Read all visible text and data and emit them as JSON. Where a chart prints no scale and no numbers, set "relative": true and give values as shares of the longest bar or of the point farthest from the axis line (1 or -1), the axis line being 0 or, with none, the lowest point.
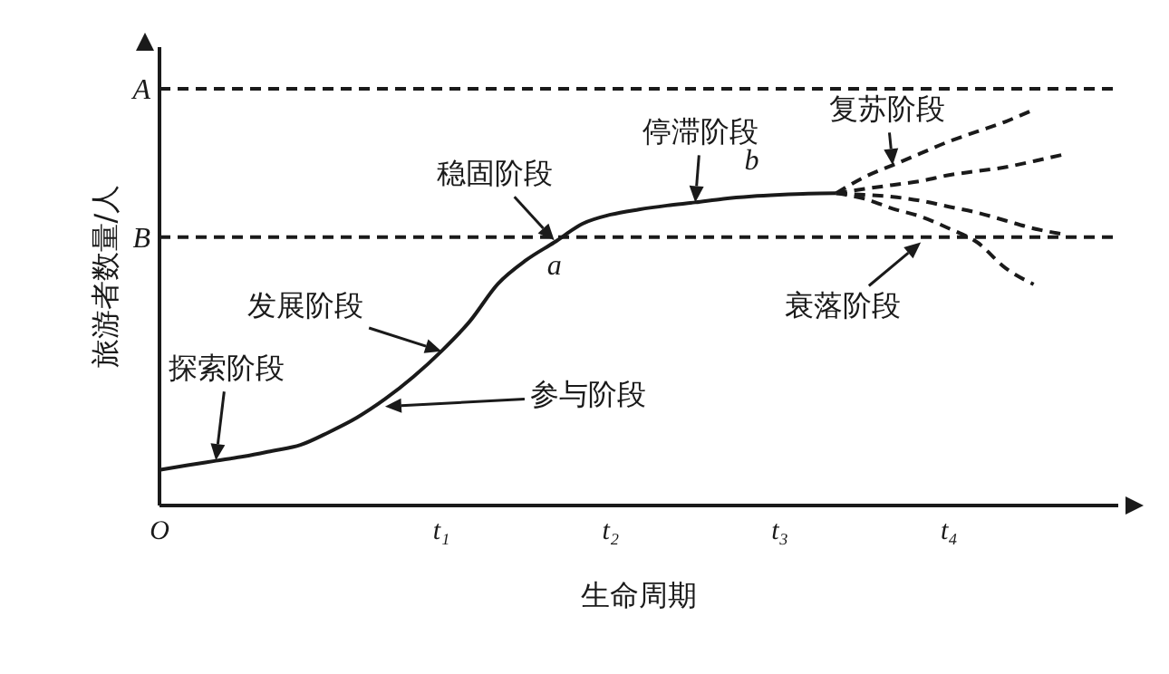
{
  "chart_data": {
    "type": "line",
    "relative": true,
    "xlabel": "生命周期",
    "ylabel": "旅游者数量/人",
    "categories": [
      "O",
      null,
      null,
      null,
      null,
      null,
      null,
      null,
      null,
      null,
      "t₁",
      null,
      null,
      null,
      null,
      null,
      "t₂",
      null,
      null,
      null,
      null,
      null,
      "t₃",
      null,
      null,
      null,
      null,
      null,
      "t₄",
      null,
      null,
      null,
      null,
      null,
      null
    ],
    "marker": "none",
    "grid": false,
    "legend": false,
    "series": [
      {
        "color": "#1a1a1a",
        "line_style": "solid",
        "values": [
          0.09,
          0.102,
          0.113,
          0.124,
          0.138,
          0.153,
          0.185,
          0.222,
          0.269,
          0.325,
          0.39,
          0.465,
          0.56,
          0.62,
          0.665,
          0.712,
          0.735,
          0.748,
          0.758,
          0.766,
          0.775,
          0.781,
          0.785,
          0.788,
          0.789,
          null,
          null,
          null,
          null,
          null,
          null,
          null,
          null,
          null,
          null
        ]
      },
      {
        "color": "#1a1a1a",
        "line_style": "dashed",
        "values": [
          null,
          null,
          null,
          null,
          null,
          null,
          null,
          null,
          null,
          null,
          null,
          null,
          null,
          null,
          null,
          null,
          null,
          null,
          null,
          null,
          null,
          null,
          null,
          null,
          0.789,
          0.83,
          0.86,
          0.89,
          0.92,
          0.945,
          0.97,
          1.0,
          null,
          null,
          null
        ]
      },
      {
        "color": "#1a1a1a",
        "line_style": "dashed",
        "values": [
          null,
          null,
          null,
          null,
          null,
          null,
          null,
          null,
          null,
          null,
          null,
          null,
          null,
          null,
          null,
          null,
          null,
          null,
          null,
          null,
          null,
          null,
          null,
          null,
          0.789,
          0.8,
          0.81,
          0.82,
          0.835,
          0.845,
          0.855,
          0.87,
          0.886,
          null,
          null
        ]
      },
      {
        "color": "#1a1a1a",
        "line_style": "dashed",
        "values": [
          null,
          null,
          null,
          null,
          null,
          null,
          null,
          null,
          null,
          null,
          null,
          null,
          null,
          null,
          null,
          null,
          null,
          null,
          null,
          null,
          null,
          null,
          null,
          null,
          0.789,
          0.785,
          0.78,
          0.77,
          0.755,
          0.74,
          0.72,
          0.7,
          0.686,
          null,
          null
        ]
      },
      {
        "color": "#1a1a1a",
        "line_style": "dashed",
        "values": [
          null,
          null,
          null,
          null,
          null,
          null,
          null,
          null,
          null,
          null,
          null,
          null,
          null,
          null,
          null,
          null,
          null,
          null,
          null,
          null,
          null,
          null,
          null,
          null,
          0.789,
          0.775,
          0.75,
          0.73,
          0.7,
          0.665,
          0.6,
          0.559,
          null,
          null,
          null
        ]
      }
    ],
    "ref_lines": [
      {
        "axis": "y",
        "value": 1.053,
        "label": "A",
        "line_style": "dashed",
        "color": "#1a1a1a"
      },
      {
        "axis": "y",
        "value": 0.678,
        "label": "B",
        "line_style": "dashed",
        "color": "#1a1a1a"
      }
    ],
    "annotations": [
      "探索阶段",
      "参与阶段",
      "发展阶段",
      "稳固阶段",
      "停滞阶段",
      "复苏阶段",
      "衰落阶段",
      "a",
      "b"
    ]
  }
}
